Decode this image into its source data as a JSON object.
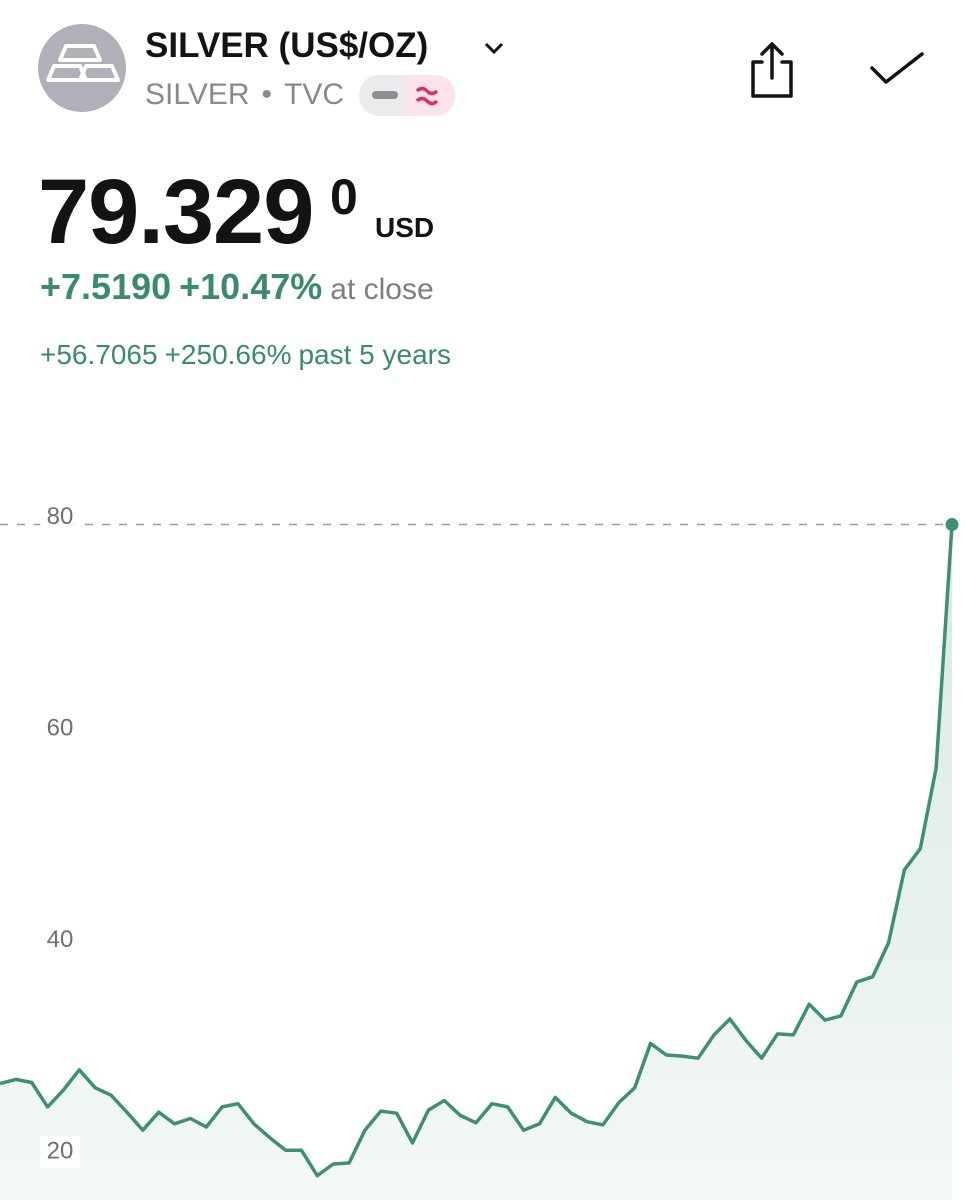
{
  "header": {
    "title": "SILVER (US$/OZ)",
    "symbol": "SILVER",
    "separator": "•",
    "exchange": "TVC"
  },
  "quote": {
    "price": "79.329",
    "price_last_digit": "0",
    "currency": "USD",
    "change": "+7.5190",
    "change_percent": "+10.47%",
    "status": "at close",
    "period_change": "+56.7065",
    "period_change_percent": "+250.66%",
    "period_label": "past 5 years"
  },
  "chart_data": {
    "type": "area",
    "color": "#3f8f74",
    "values": [
      26.5,
      26.9,
      26.6,
      24.3,
      25.9,
      27.8,
      26.1,
      25.4,
      23.8,
      22.1,
      23.8,
      22.7,
      23.2,
      22.4,
      24.3,
      24.6,
      22.7,
      21.4,
      20.2,
      20.2,
      17.8,
      18.9,
      19.0,
      22.1,
      23.9,
      23.7,
      20.9,
      24.0,
      24.9,
      23.5,
      22.8,
      24.6,
      24.3,
      22.1,
      22.7,
      25.2,
      23.7,
      22.9,
      22.6,
      24.7,
      26.1,
      30.3,
      29.2,
      29.1,
      28.9,
      31.1,
      32.6,
      30.6,
      28.9,
      31.2,
      31.1,
      34.0,
      32.5,
      32.9,
      36.1,
      36.6,
      39.8,
      46.7,
      48.7,
      56.3,
      79.329
    ],
    "ylim": [
      15.5,
      91.1
    ],
    "yticks": [
      20,
      40,
      60,
      80
    ]
  }
}
